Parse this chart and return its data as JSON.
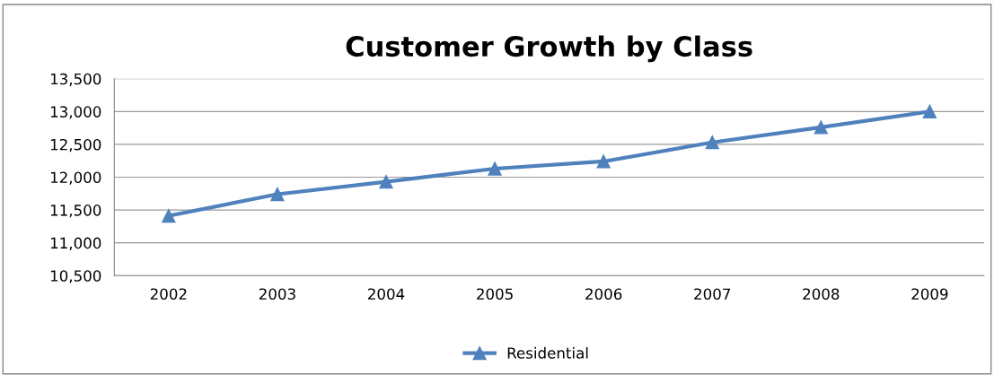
{
  "chart_data": {
    "type": "line",
    "title": "Customer Growth by Class",
    "categories": [
      "2002",
      "2003",
      "2004",
      "2005",
      "2006",
      "2007",
      "2008",
      "2009"
    ],
    "series": [
      {
        "name": "Residential",
        "color": "#4f81bd",
        "values": [
          11410,
          11740,
          11930,
          12130,
          12240,
          12530,
          12760,
          13000
        ]
      }
    ],
    "ylim": [
      10500,
      13500
    ],
    "yticks": [
      {
        "value": 10500,
        "label": "10,500"
      },
      {
        "value": 11000,
        "label": "11,000"
      },
      {
        "value": 11500,
        "label": "11,500"
      },
      {
        "value": 12000,
        "label": "12,000"
      },
      {
        "value": 12500,
        "label": "12,500"
      },
      {
        "value": 13000,
        "label": "13,000"
      },
      {
        "value": 13500,
        "label": "13,500"
      }
    ],
    "grid": "y",
    "legend": "bottom",
    "marker": "triangle",
    "line_style": "solid"
  }
}
